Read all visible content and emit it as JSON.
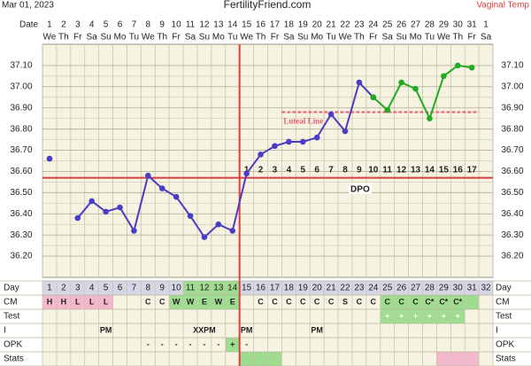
{
  "chart_data": {
    "type": "line",
    "date_label": "Mar 01, 2023",
    "title": "FertilityFriend.com",
    "temp_type": "Vaginal Temp",
    "date_row_label": "Date",
    "dates": [
      1,
      2,
      3,
      4,
      5,
      6,
      7,
      8,
      9,
      10,
      11,
      12,
      13,
      14,
      15,
      16,
      17,
      18,
      19,
      20,
      21,
      22,
      23,
      24,
      25,
      26,
      27,
      28,
      29,
      30,
      31,
      1
    ],
    "weekdays": [
      "We",
      "Th",
      "Fr",
      "Sa",
      "Su",
      "Mo",
      "Tu",
      "We",
      "Th",
      "Fr",
      "Sa",
      "Su",
      "Mo",
      "Tu",
      "We",
      "Th",
      "Fr",
      "Sa",
      "Su",
      "Mo",
      "Tu",
      "We",
      "Th",
      "Fr",
      "Sa",
      "Su",
      "Mo",
      "Tu",
      "We",
      "Th",
      "Fr",
      "Sa"
    ],
    "day_label": "Day",
    "categories": [
      1,
      2,
      3,
      4,
      5,
      6,
      7,
      8,
      9,
      10,
      11,
      12,
      13,
      14,
      15,
      16,
      17,
      18,
      19,
      20,
      21,
      22,
      23,
      24,
      25,
      26,
      27,
      28,
      29,
      30,
      31,
      32
    ],
    "series": [
      {
        "color": "#4b3cc4",
        "values": [
          36.66,
          null,
          36.38,
          36.46,
          36.41,
          36.43,
          36.32,
          36.58,
          36.52,
          36.48,
          36.39,
          36.29,
          36.35,
          36.32,
          36.59,
          36.68,
          36.72,
          36.74,
          36.74,
          36.76,
          36.87,
          36.79,
          37.02,
          36.95,
          null,
          null,
          null,
          null,
          null,
          null,
          null,
          null
        ]
      },
      {
        "color": "#22aa22",
        "values": [
          null,
          null,
          null,
          null,
          null,
          null,
          null,
          null,
          null,
          null,
          null,
          null,
          null,
          null,
          null,
          null,
          null,
          null,
          null,
          null,
          null,
          null,
          null,
          36.95,
          36.89,
          37.02,
          36.99,
          36.85,
          37.05,
          37.1,
          37.09,
          null
        ]
      }
    ],
    "ylim": [
      36.1,
      37.2
    ],
    "yticks": [
      {
        "value": 36.2,
        "label": "36.20"
      },
      {
        "value": 36.3,
        "label": "36.30"
      },
      {
        "value": 36.4,
        "label": "36.40"
      },
      {
        "value": 36.5,
        "label": "36.50"
      },
      {
        "value": 36.6,
        "label": "36.60"
      },
      {
        "value": 36.7,
        "label": "36.70"
      },
      {
        "value": 36.8,
        "label": "36.80"
      },
      {
        "value": 36.9,
        "label": "36.90"
      },
      {
        "value": 37.0,
        "label": "37.00"
      },
      {
        "value": 37.1,
        "label": "37.10"
      }
    ],
    "coverline": 36.57,
    "coverline_color": "#d94040",
    "ovulation_day": 14,
    "luteal_line": {
      "label": "Luteal Line",
      "value": 36.88,
      "start_day": 18,
      "end_day": 31,
      "color": "#e06070"
    },
    "dpo_label": "DPO",
    "dpo": [
      null,
      null,
      null,
      null,
      null,
      null,
      null,
      null,
      null,
      null,
      null,
      null,
      null,
      null,
      1,
      2,
      3,
      4,
      5,
      6,
      7,
      8,
      9,
      10,
      11,
      12,
      13,
      14,
      15,
      16,
      17,
      null
    ],
    "rows": [
      {
        "label": "CM",
        "cells": [
          "H",
          "H",
          "L",
          "L",
          "L",
          null,
          null,
          "C",
          "C",
          "W",
          "W",
          "E",
          "W",
          "E",
          null,
          "C",
          "C",
          "C",
          "C",
          "C",
          "C",
          "S",
          "C",
          "C",
          "C",
          "C",
          "C",
          "C*",
          "C*",
          "C*",
          null,
          null
        ]
      },
      {
        "label": "Test",
        "cells": [
          null,
          null,
          null,
          null,
          null,
          null,
          null,
          null,
          null,
          null,
          null,
          null,
          null,
          null,
          null,
          null,
          null,
          null,
          null,
          null,
          null,
          null,
          null,
          null,
          "+",
          "+",
          "+",
          "+",
          "+",
          "+",
          null,
          null
        ]
      },
      {
        "label": "I",
        "cells": [
          null,
          null,
          null,
          null,
          "PM",
          null,
          null,
          null,
          null,
          null,
          null,
          "XXPM",
          null,
          null,
          "PM",
          null,
          null,
          null,
          null,
          "PM",
          null,
          null,
          null,
          null,
          null,
          null,
          null,
          null,
          null,
          null,
          null,
          null
        ]
      },
      {
        "label": "OPK",
        "cells": [
          null,
          null,
          null,
          null,
          null,
          null,
          null,
          "-",
          "-",
          "-",
          "-",
          "-",
          "-",
          "+",
          "-",
          null,
          null,
          null,
          null,
          null,
          null,
          null,
          null,
          null,
          null,
          null,
          null,
          null,
          null,
          null,
          null,
          null
        ]
      },
      {
        "label": "Stats",
        "cells": [
          null,
          null,
          null,
          null,
          null,
          null,
          null,
          null,
          null,
          null,
          null,
          null,
          null,
          null,
          null,
          null,
          null,
          null,
          null,
          null,
          null,
          null,
          null,
          null,
          null,
          null,
          null,
          null,
          null,
          null,
          null,
          null
        ]
      }
    ]
  }
}
